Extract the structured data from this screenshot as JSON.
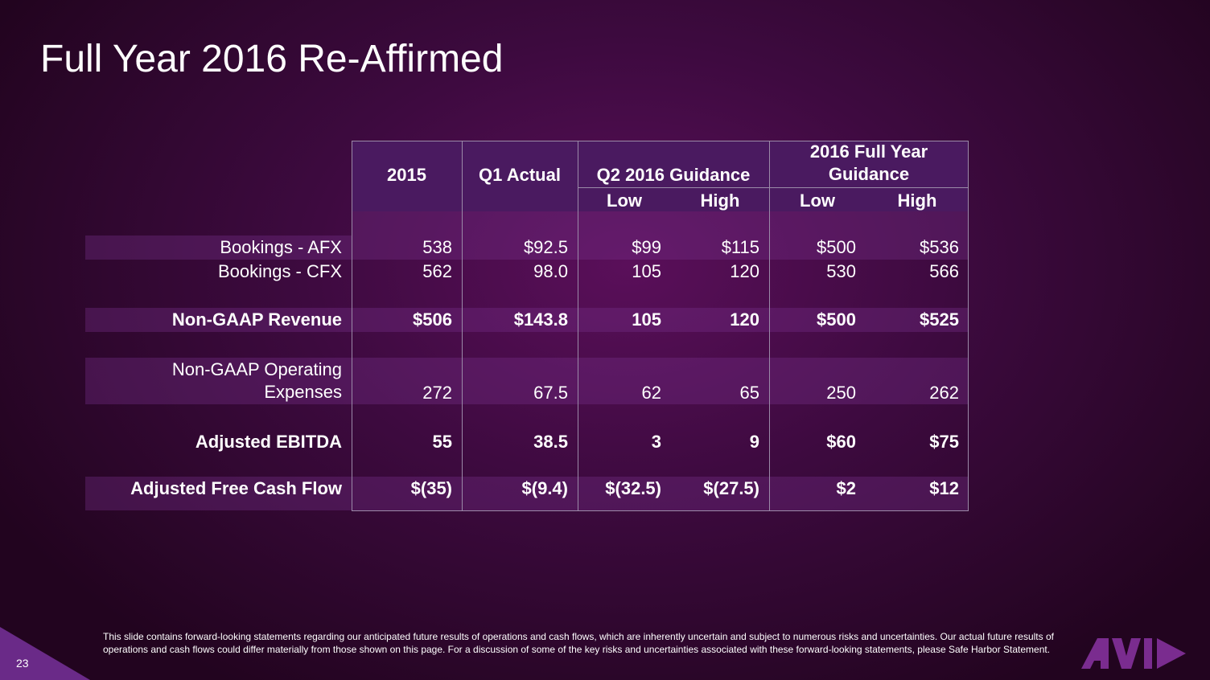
{
  "title": "Full Year 2016 Re-Affirmed",
  "table": {
    "headers": {
      "y2015": "2015",
      "q1": "Q1 Actual",
      "q2": "Q2 2016 Guidance",
      "fy": "2016 Full Year Guidance",
      "q2_low": "Low",
      "q2_high": "High",
      "fy_low": "Low",
      "fy_high": "High"
    },
    "rows": [
      {
        "label": "Bookings - AFX",
        "values": [
          "538",
          "$92.5",
          "$99",
          "$115",
          "$500",
          "$536"
        ]
      },
      {
        "label": "Bookings - CFX",
        "values": [
          "562",
          "98.0",
          "105",
          "120",
          "530",
          "566"
        ]
      },
      {
        "label": "Non-GAAP Revenue",
        "values": [
          "$506",
          "$143.8",
          "105",
          "120",
          "$500",
          "$525"
        ]
      },
      {
        "label": "Non-GAAP Operating Expenses",
        "values": [
          "272",
          "67.5",
          "62",
          "65",
          "250",
          "262"
        ]
      },
      {
        "label": "Adjusted EBITDA",
        "values": [
          "55",
          "38.5",
          "3",
          "9",
          "$60",
          "$75"
        ]
      },
      {
        "label": "Adjusted Free Cash Flow",
        "values": [
          "$(35)",
          "$(9.4)",
          "$(32.5)",
          "$(27.5)",
          "$2",
          "$12"
        ]
      }
    ]
  },
  "footer_text": "This slide contains forward-looking statements regarding our anticipated future results of operations and cash flows, which are inherently uncertain and subject to numerous risks and uncertainties.  Our actual future results of operations and cash flows could differ materially from those shown on this page.  For a discussion of some of the key risks and uncertainties associated with these forward-looking statements, please Safe Harbor Statement.",
  "page_number": "23",
  "logo": "avid-logo",
  "colors": {
    "accent": "#7a2c8f",
    "background": "#3d0a3f"
  }
}
